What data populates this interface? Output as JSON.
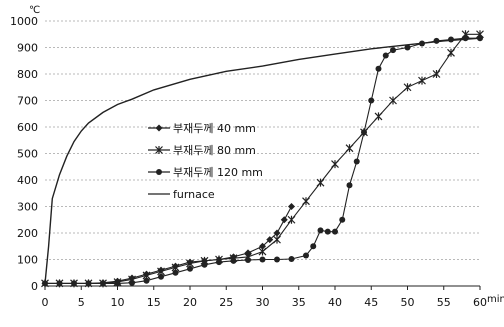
{
  "chart_data": {
    "type": "line",
    "y_unit": "℃",
    "x_unit": "min",
    "xlim": [
      0,
      60
    ],
    "ylim": [
      0,
      1000
    ],
    "x_ticks": [
      0,
      5,
      10,
      15,
      20,
      25,
      30,
      35,
      40,
      45,
      50,
      55,
      60
    ],
    "y_ticks": [
      0,
      100,
      200,
      300,
      400,
      500,
      600,
      700,
      800,
      900,
      1000
    ],
    "grid": "horizontal dotted",
    "legend_position": "middle-left",
    "series": [
      {
        "name": "부재두께 40 mm",
        "marker": "diamond",
        "color": "#222222",
        "points": [
          [
            0,
            10
          ],
          [
            2,
            10
          ],
          [
            4,
            10
          ],
          [
            6,
            10
          ],
          [
            8,
            12
          ],
          [
            10,
            18
          ],
          [
            12,
            30
          ],
          [
            14,
            45
          ],
          [
            16,
            60
          ],
          [
            18,
            75
          ],
          [
            20,
            90
          ],
          [
            22,
            95
          ],
          [
            24,
            100
          ],
          [
            26,
            110
          ],
          [
            28,
            125
          ],
          [
            30,
            150
          ],
          [
            31,
            175
          ],
          [
            32,
            200
          ],
          [
            33,
            250
          ],
          [
            34,
            300
          ]
        ]
      },
      {
        "name": "부재두께 80 mm",
        "marker": "cross",
        "color": "#222222",
        "points": [
          [
            0,
            10
          ],
          [
            2,
            10
          ],
          [
            4,
            10
          ],
          [
            6,
            10
          ],
          [
            8,
            10
          ],
          [
            10,
            15
          ],
          [
            12,
            25
          ],
          [
            14,
            40
          ],
          [
            16,
            55
          ],
          [
            18,
            70
          ],
          [
            20,
            85
          ],
          [
            22,
            95
          ],
          [
            24,
            100
          ],
          [
            26,
            105
          ],
          [
            28,
            110
          ],
          [
            30,
            130
          ],
          [
            32,
            175
          ],
          [
            34,
            250
          ],
          [
            36,
            320
          ],
          [
            38,
            390
          ],
          [
            40,
            460
          ],
          [
            42,
            520
          ],
          [
            44,
            580
          ],
          [
            46,
            640
          ],
          [
            48,
            700
          ],
          [
            50,
            750
          ],
          [
            52,
            775
          ],
          [
            54,
            800
          ],
          [
            56,
            880
          ],
          [
            58,
            950
          ],
          [
            60,
            950
          ]
        ]
      },
      {
        "name": "부재두께 120 mm",
        "marker": "circle",
        "color": "#222222",
        "points": [
          [
            0,
            10
          ],
          [
            2,
            10
          ],
          [
            4,
            10
          ],
          [
            6,
            10
          ],
          [
            8,
            10
          ],
          [
            10,
            10
          ],
          [
            12,
            12
          ],
          [
            14,
            20
          ],
          [
            16,
            35
          ],
          [
            18,
            50
          ],
          [
            20,
            65
          ],
          [
            22,
            80
          ],
          [
            24,
            90
          ],
          [
            26,
            95
          ],
          [
            28,
            98
          ],
          [
            30,
            100
          ],
          [
            32,
            100
          ],
          [
            34,
            102
          ],
          [
            36,
            115
          ],
          [
            37,
            150
          ],
          [
            38,
            210
          ],
          [
            39,
            205
          ],
          [
            40,
            205
          ],
          [
            41,
            250
          ],
          [
            42,
            380
          ],
          [
            43,
            470
          ],
          [
            44,
            580
          ],
          [
            45,
            700
          ],
          [
            46,
            820
          ],
          [
            47,
            870
          ],
          [
            48,
            890
          ],
          [
            50,
            900
          ],
          [
            52,
            915
          ],
          [
            54,
            925
          ],
          [
            56,
            930
          ],
          [
            58,
            935
          ],
          [
            60,
            935
          ]
        ]
      },
      {
        "name": "furnace",
        "marker": "none",
        "color": "#222222",
        "points": [
          [
            0,
            10
          ],
          [
            0.5,
            150
          ],
          [
            1,
            330
          ],
          [
            2,
            420
          ],
          [
            3,
            490
          ],
          [
            4,
            545
          ],
          [
            5,
            585
          ],
          [
            6,
            615
          ],
          [
            8,
            655
          ],
          [
            10,
            685
          ],
          [
            12,
            705
          ],
          [
            15,
            740
          ],
          [
            20,
            780
          ],
          [
            25,
            810
          ],
          [
            30,
            830
          ],
          [
            35,
            855
          ],
          [
            40,
            875
          ],
          [
            45,
            895
          ],
          [
            50,
            910
          ],
          [
            55,
            925
          ],
          [
            60,
            935
          ]
        ]
      }
    ]
  }
}
